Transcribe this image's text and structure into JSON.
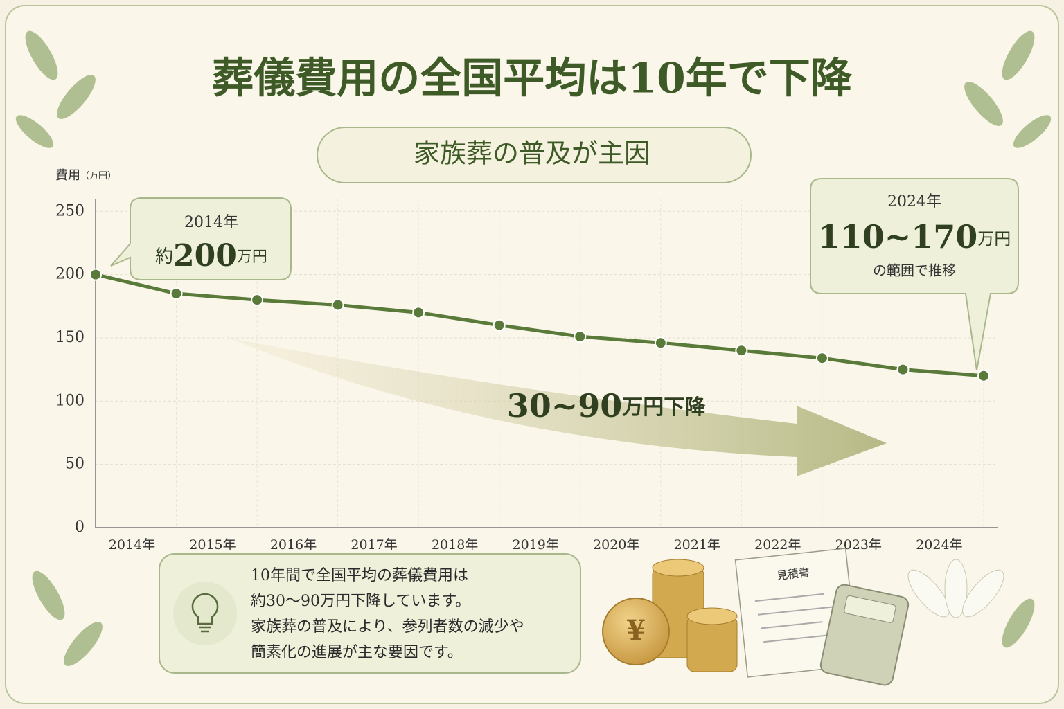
{
  "chart_data": {
    "type": "line",
    "title": "葬儀費用の全国平均は10年で下降",
    "subtitle": "家族葬の普及が主因",
    "y_label": "費用",
    "y_unit": "（万円）",
    "categories": [
      "2014年",
      "2015年",
      "2016年",
      "2017年",
      "2018年",
      "2019年",
      "2020年",
      "2021年",
      "2022年",
      "2023年",
      "2024年",
      null
    ],
    "values": [
      200,
      185,
      180,
      176,
      170,
      160,
      151,
      146,
      140,
      134,
      125,
      120
    ],
    "color": "#5a7a3a",
    "ylim": [
      0,
      260
    ],
    "yticks": [
      0,
      50,
      100,
      150,
      200,
      250
    ],
    "grid": true,
    "annotations": {
      "start": {
        "year": "2014年",
        "prefix": "約",
        "amount": "200",
        "unit": "万円"
      },
      "end": {
        "year": "2024年",
        "amount": "110~170",
        "unit": "万円",
        "suffix": "の範囲で推移"
      },
      "trend": {
        "amount": "30~90",
        "unit": "万円下降"
      }
    },
    "summary": [
      "10年間で全国平均の葬儀費用は",
      "約30～90万円下降しています。",
      "家族葬の普及により、参列者数の減少や",
      "簡素化の進展が主な要因です。"
    ],
    "document_label": "見積書",
    "coin_symbol": "¥"
  }
}
